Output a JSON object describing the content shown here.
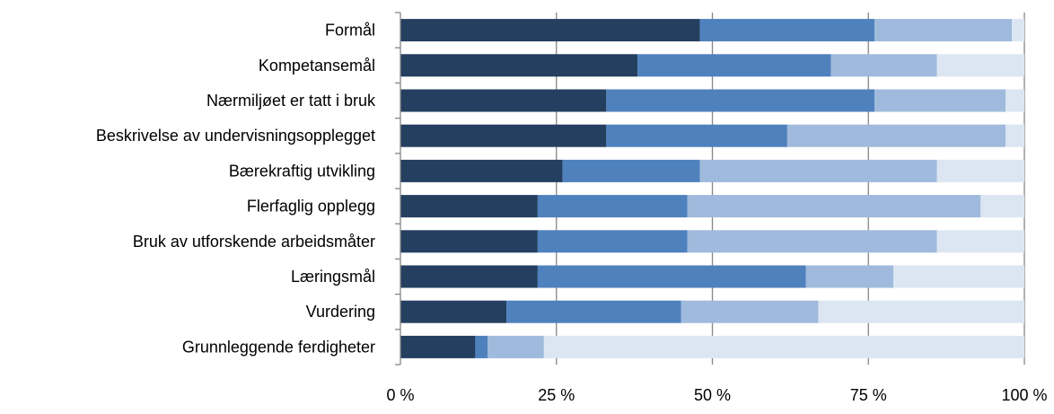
{
  "chart_data": {
    "type": "bar",
    "orientation": "horizontal",
    "stacked": "percent",
    "categories": [
      "Formål",
      "Kompetansemål",
      "Nærmiljøet er tatt i bruk",
      "Beskrivelse av undervisningsopplegget",
      "Bærekraftig utvikling",
      "Flerfaglig opplegg",
      "Bruk av utforskende arbeidsmåter",
      "Læringsmål",
      "Vurdering",
      "Grunnleggende ferdigheter"
    ],
    "series": [
      {
        "values": [
          48,
          38,
          33,
          33,
          26,
          22,
          22,
          22,
          17,
          12
        ]
      },
      {
        "values": [
          28,
          31,
          43,
          29,
          22,
          24,
          24,
          43,
          28,
          2
        ]
      },
      {
        "values": [
          22,
          17,
          21,
          35,
          38,
          47,
          40,
          14,
          22,
          9
        ]
      },
      {
        "values": [
          2,
          14,
          3,
          3,
          14,
          7,
          14,
          21,
          33,
          77
        ]
      }
    ],
    "colors": [
      "#243f60",
      "#4f81bd",
      "#9fbadc",
      "#dce6f2"
    ],
    "xlim": [
      0,
      100
    ],
    "xticks": [
      "0 %",
      "25 %",
      "50 %",
      "75 %",
      "100 %"
    ],
    "grid": true,
    "legend": "none"
  }
}
